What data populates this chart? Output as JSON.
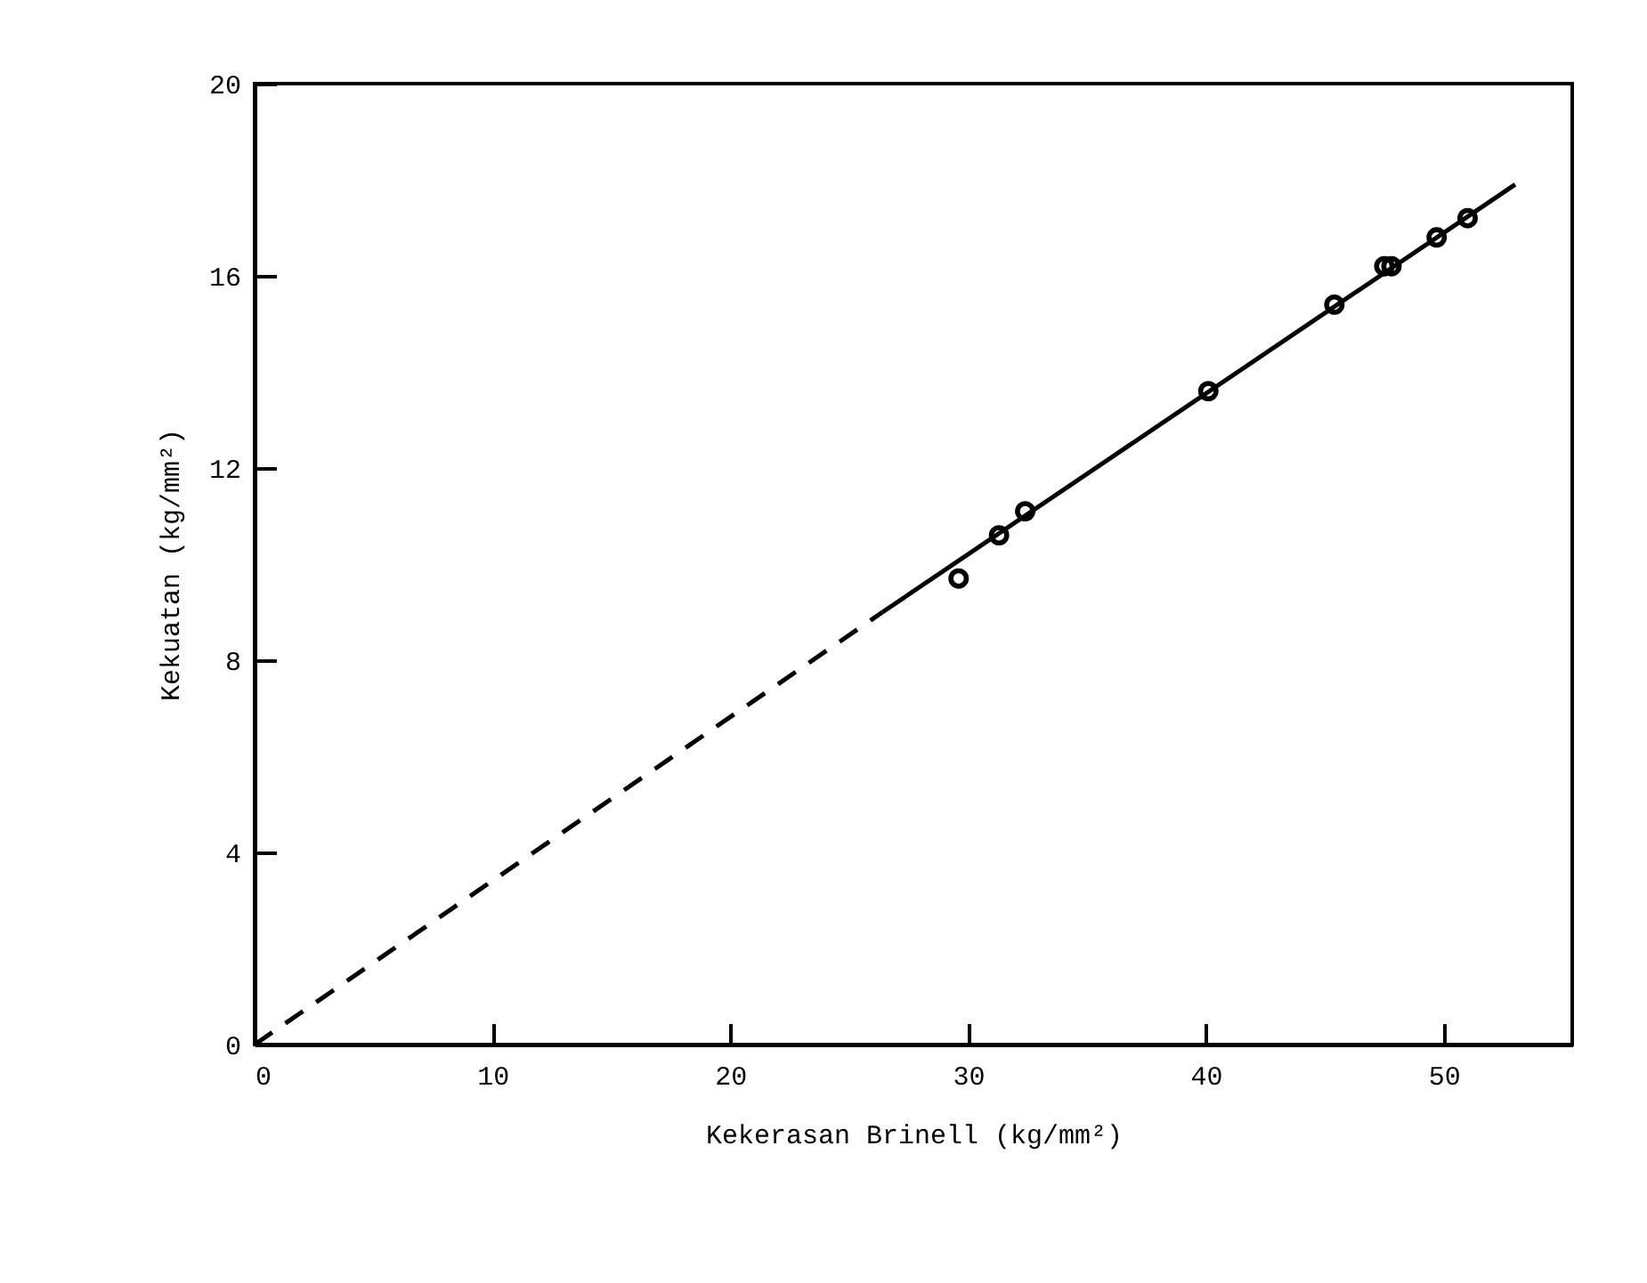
{
  "chart_data": {
    "type": "scatter",
    "xlabel": "Kekerasan Brinell (kg/mm²)",
    "ylabel": "Kekuatan (kg/mm²)",
    "xlim": [
      0,
      55.4
    ],
    "ylim": [
      0,
      20
    ],
    "xticks": [
      0,
      10,
      20,
      30,
      40,
      50
    ],
    "yticks": [
      0,
      4,
      8,
      12,
      16,
      20
    ],
    "grid": false,
    "series": [
      {
        "color": "#000000",
        "marker": "circle",
        "x": [
          29.6,
          31.3,
          32.4,
          40.1,
          45.4,
          47.5,
          47.8,
          49.7,
          51.0
        ],
        "values": [
          9.7,
          10.6,
          11.1,
          13.6,
          15.4,
          16.2,
          16.2,
          16.8,
          17.2
        ]
      },
      {
        "type": "line",
        "color": "#000000",
        "line_style": "solid",
        "x": [
          26.4,
          53.0
        ],
        "values": [
          9.0,
          17.9
        ]
      },
      {
        "type": "line",
        "color": "#000000",
        "line_style": "dashed",
        "x": [
          0,
          26.4
        ],
        "values": [
          0,
          9.0
        ]
      }
    ]
  }
}
